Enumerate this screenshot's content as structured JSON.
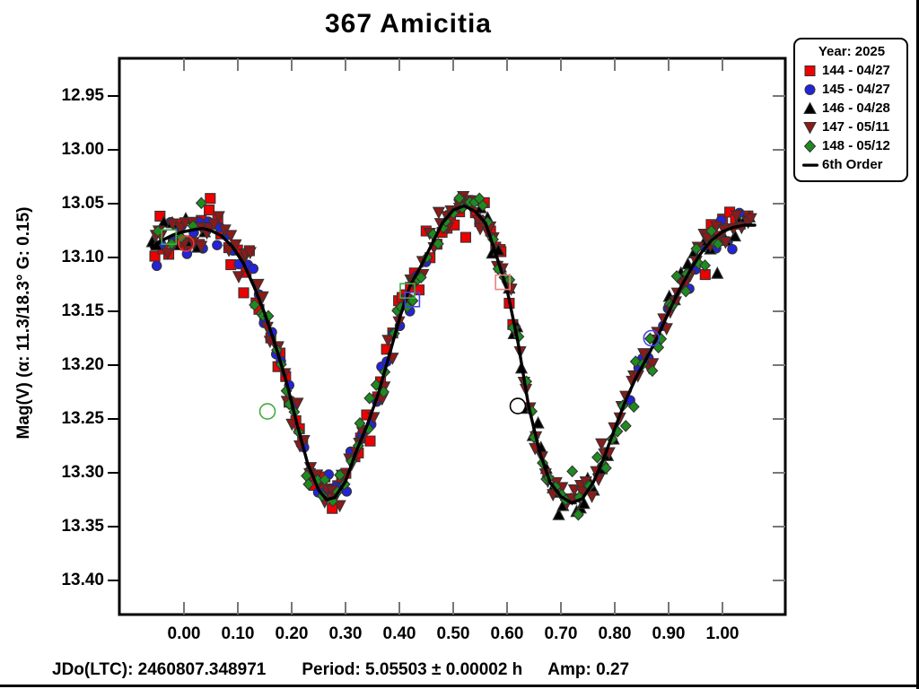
{
  "title": "367 Amicitia",
  "legend": {
    "year_label": "Year: 2025",
    "items": [
      {
        "label": "144 - 04/27",
        "marker": "square",
        "color": "#EE0000"
      },
      {
        "label": "145 - 04/27",
        "marker": "circle",
        "color": "#2323DD"
      },
      {
        "label": "146 - 04/28",
        "marker": "triangle-up",
        "color": "#000000"
      },
      {
        "label": "147 - 05/11",
        "marker": "triangle-down",
        "color": "#8B1A1A"
      },
      {
        "label": "148 - 05/12",
        "marker": "diamond",
        "color": "#1F8B1F"
      },
      {
        "label": "6th Order",
        "marker": "line",
        "color": "#000000"
      }
    ]
  },
  "footer": {
    "jd": "JDo(LTC): 2460807.348971",
    "period": "Period: 5.05503 ± 0.00002 h",
    "amp": "Amp: 0.27"
  },
  "chart_data": {
    "type": "scatter",
    "title": "367 Amicitia",
    "xlabel": "",
    "ylabel": "Mag(V)   (α: 11.3/18.3°  G: 0.15)",
    "year": 2025,
    "jd0_ltc": 2460807.348971,
    "period_h": 5.05503,
    "period_err_h": 2e-05,
    "amplitude_mag": 0.27,
    "phase_angle": "11.3/18.3°",
    "G": 0.15,
    "x_tick_labels": [
      "0.00",
      "0.10",
      "0.20",
      "0.30",
      "0.40",
      "0.50",
      "0.60",
      "0.70",
      "0.80",
      "0.90",
      "1.00"
    ],
    "y_tick_labels": [
      "12.95",
      "13.00",
      "13.05",
      "13.10",
      "13.15",
      "13.20",
      "13.25",
      "13.30",
      "13.35",
      "13.40"
    ],
    "xlim": [
      -0.12,
      1.117
    ],
    "ylim": [
      13.435,
      12.915
    ],
    "y_axis_inverted": true,
    "grid": false,
    "legend_position": "top-right",
    "sessions": [
      {
        "label": "144 - 04/27",
        "marker": "square",
        "color": "#EE0000",
        "sigma": 0.013,
        "segments": [
          [
            -0.055,
            0.615,
            0.009
          ],
          [
            0.97,
            1.055,
            0.011
          ]
        ]
      },
      {
        "label": "145 - 04/27",
        "marker": "circle",
        "color": "#2323DD",
        "sigma": 0.01,
        "segments": [
          [
            -0.05,
            0.455,
            0.011
          ],
          [
            0.83,
            1.045,
            0.012
          ]
        ]
      },
      {
        "label": "146 - 04/28",
        "marker": "triangle-up",
        "color": "#000000",
        "sigma": 0.009,
        "segments": [
          [
            -0.06,
            0.045,
            0.012
          ],
          [
            0.555,
            0.8,
            0.009
          ],
          [
            0.9,
            1.055,
            0.011
          ]
        ]
      },
      {
        "label": "147 - 05/11",
        "marker": "triangle-down",
        "color": "#8B1A1A",
        "sigma": 0.01,
        "segments": [
          [
            -0.055,
            1.058,
            0.0075
          ]
        ]
      },
      {
        "label": "148 - 05/12",
        "marker": "diamond",
        "color": "#1F8B1F",
        "sigma": 0.01,
        "segments": [
          [
            -0.045,
            0.05,
            0.02
          ],
          [
            0.13,
            1.0,
            0.0095
          ]
        ]
      }
    ],
    "fit_curve": {
      "name": "6th Order",
      "points": [
        [
          -0.06,
          13.091
        ],
        [
          -0.04,
          13.084
        ],
        [
          -0.02,
          13.079
        ],
        [
          0.0,
          13.076
        ],
        [
          0.02,
          13.074
        ],
        [
          0.035,
          13.073
        ],
        [
          0.05,
          13.075
        ],
        [
          0.07,
          13.08
        ],
        [
          0.09,
          13.09
        ],
        [
          0.11,
          13.105
        ],
        [
          0.13,
          13.127
        ],
        [
          0.15,
          13.152
        ],
        [
          0.17,
          13.182
        ],
        [
          0.19,
          13.215
        ],
        [
          0.21,
          13.255
        ],
        [
          0.23,
          13.292
        ],
        [
          0.25,
          13.316
        ],
        [
          0.265,
          13.325
        ],
        [
          0.28,
          13.323
        ],
        [
          0.3,
          13.308
        ],
        [
          0.32,
          13.28
        ],
        [
          0.34,
          13.256
        ],
        [
          0.36,
          13.228
        ],
        [
          0.38,
          13.193
        ],
        [
          0.4,
          13.157
        ],
        [
          0.42,
          13.126
        ],
        [
          0.44,
          13.108
        ],
        [
          0.46,
          13.088
        ],
        [
          0.48,
          13.068
        ],
        [
          0.5,
          13.056
        ],
        [
          0.52,
          13.052
        ],
        [
          0.54,
          13.057
        ],
        [
          0.56,
          13.068
        ],
        [
          0.58,
          13.098
        ],
        [
          0.6,
          13.13
        ],
        [
          0.62,
          13.178
        ],
        [
          0.64,
          13.238
        ],
        [
          0.66,
          13.28
        ],
        [
          0.68,
          13.309
        ],
        [
          0.7,
          13.322
        ],
        [
          0.72,
          13.328
        ],
        [
          0.74,
          13.324
        ],
        [
          0.76,
          13.309
        ],
        [
          0.78,
          13.286
        ],
        [
          0.8,
          13.259
        ],
        [
          0.82,
          13.233
        ],
        [
          0.84,
          13.211
        ],
        [
          0.86,
          13.193
        ],
        [
          0.88,
          13.173
        ],
        [
          0.9,
          13.151
        ],
        [
          0.92,
          13.13
        ],
        [
          0.94,
          13.112
        ],
        [
          0.96,
          13.096
        ],
        [
          0.98,
          13.084
        ],
        [
          1.0,
          13.076
        ],
        [
          1.02,
          13.072
        ],
        [
          1.04,
          13.07
        ],
        [
          1.06,
          13.07
        ]
      ]
    },
    "excluded_points": [
      {
        "marker": "square-open",
        "color": "#44AA44",
        "phase": -0.028,
        "mag": 13.081
      },
      {
        "marker": "circle-open",
        "color": "#EE3333",
        "phase": 0.004,
        "mag": 13.087
      },
      {
        "marker": "circle-open",
        "color": "#44AA44",
        "phase": 0.155,
        "mag": 13.243
      },
      {
        "marker": "square-open",
        "color": "#4444EE",
        "phase": 0.424,
        "mag": 13.139
      },
      {
        "marker": "square-open",
        "color": "#44AA44",
        "phase": 0.415,
        "mag": 13.131
      },
      {
        "marker": "square-open",
        "color": "#F08080",
        "phase": 0.592,
        "mag": 13.123
      },
      {
        "marker": "circle-open",
        "color": "#000000",
        "phase": 0.62,
        "mag": 13.238
      },
      {
        "marker": "circle-open",
        "color": "#4444EE",
        "phase": 0.868,
        "mag": 13.175
      }
    ],
    "render_hints": {
      "phase_jitter": 0.0045,
      "seed": 42
    }
  }
}
